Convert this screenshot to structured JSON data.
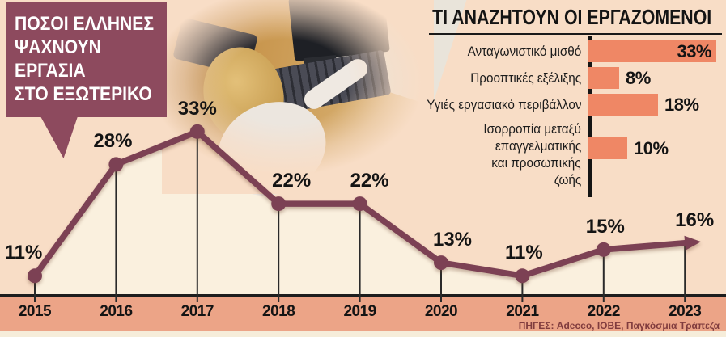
{
  "colors": {
    "background": "#f8ddc6",
    "area_fill": "#faf0de",
    "axis_strip": "#eca487",
    "footer_strip": "#f6edda",
    "bubble": "#8d4a5e",
    "line": "#7c4154",
    "tick": "#2a2a2a",
    "bar": "#ef8765",
    "text": "#141414",
    "source_text": "#803c3e"
  },
  "photo": {
    "label": "woman-working-at-computer-photo"
  },
  "source": {
    "text": "ΠΗΓΕΣ: Adecco, ΙΟΒΕ, Παγκόσμια Τράπεζα"
  },
  "chart_data": [
    {
      "type": "line",
      "title": "ΠΟΣΟΙ ΕΛΛΗΝΕΣ ΨΑΧΝΟΥΝ ΕΡΓΑΣΙΑ ΣΤΟ ΕΞΩΤΕΡΙΚΟ",
      "title_lines": [
        "ΠΟΣΟΙ ΕΛΛΗΝΕΣ",
        "ΨΑΧΝΟΥΝ",
        "ΕΡΓΑΣΙΑ",
        "ΣΤΟ ΕΞΩΤΕΡΙΚΟ"
      ],
      "categories": [
        "2015",
        "2016",
        "2017",
        "2018",
        "2019",
        "2020",
        "2021",
        "2022",
        "2023"
      ],
      "values": [
        11,
        28,
        33,
        22,
        22,
        13,
        11,
        15,
        16
      ],
      "value_labels": [
        "11%",
        "28%",
        "33%",
        "22%",
        "22%",
        "13%",
        "11%",
        "15%",
        "16%"
      ],
      "unit": "%",
      "ylim": [
        0,
        40
      ],
      "grid": false,
      "marker": "circle",
      "end_arrow": true,
      "area_under_line": true,
      "line_color": "#7c4154",
      "area_color": "#faf0de"
    },
    {
      "type": "bar",
      "orientation": "horizontal",
      "title": "ΤΙ ΑΝΑΖΗΤΟΥΝ ΟΙ ΕΡΓΑΖΟΜΕΝΟΙ",
      "bar_color": "#ef8765",
      "unit": "%",
      "xlim": [
        0,
        33
      ],
      "bars": [
        {
          "label_lines": [
            "Ανταγωνιστικό μισθό"
          ],
          "value": 33,
          "value_label": "33%",
          "value_inside": true
        },
        {
          "label_lines": [
            "Προοπτικές εξέλιξης"
          ],
          "value": 8,
          "value_label": "8%",
          "value_inside": false
        },
        {
          "label_lines": [
            "Υγιές εργασιακό περιβάλλον"
          ],
          "value": 18,
          "value_label": "18%",
          "value_inside": false
        },
        {
          "label_lines": [
            "Ισορροπία μεταξύ",
            "επαγγελματικής",
            "και προσωπικής",
            "ζωής"
          ],
          "value": 10,
          "value_label": "10%",
          "value_inside": false
        }
      ]
    }
  ]
}
